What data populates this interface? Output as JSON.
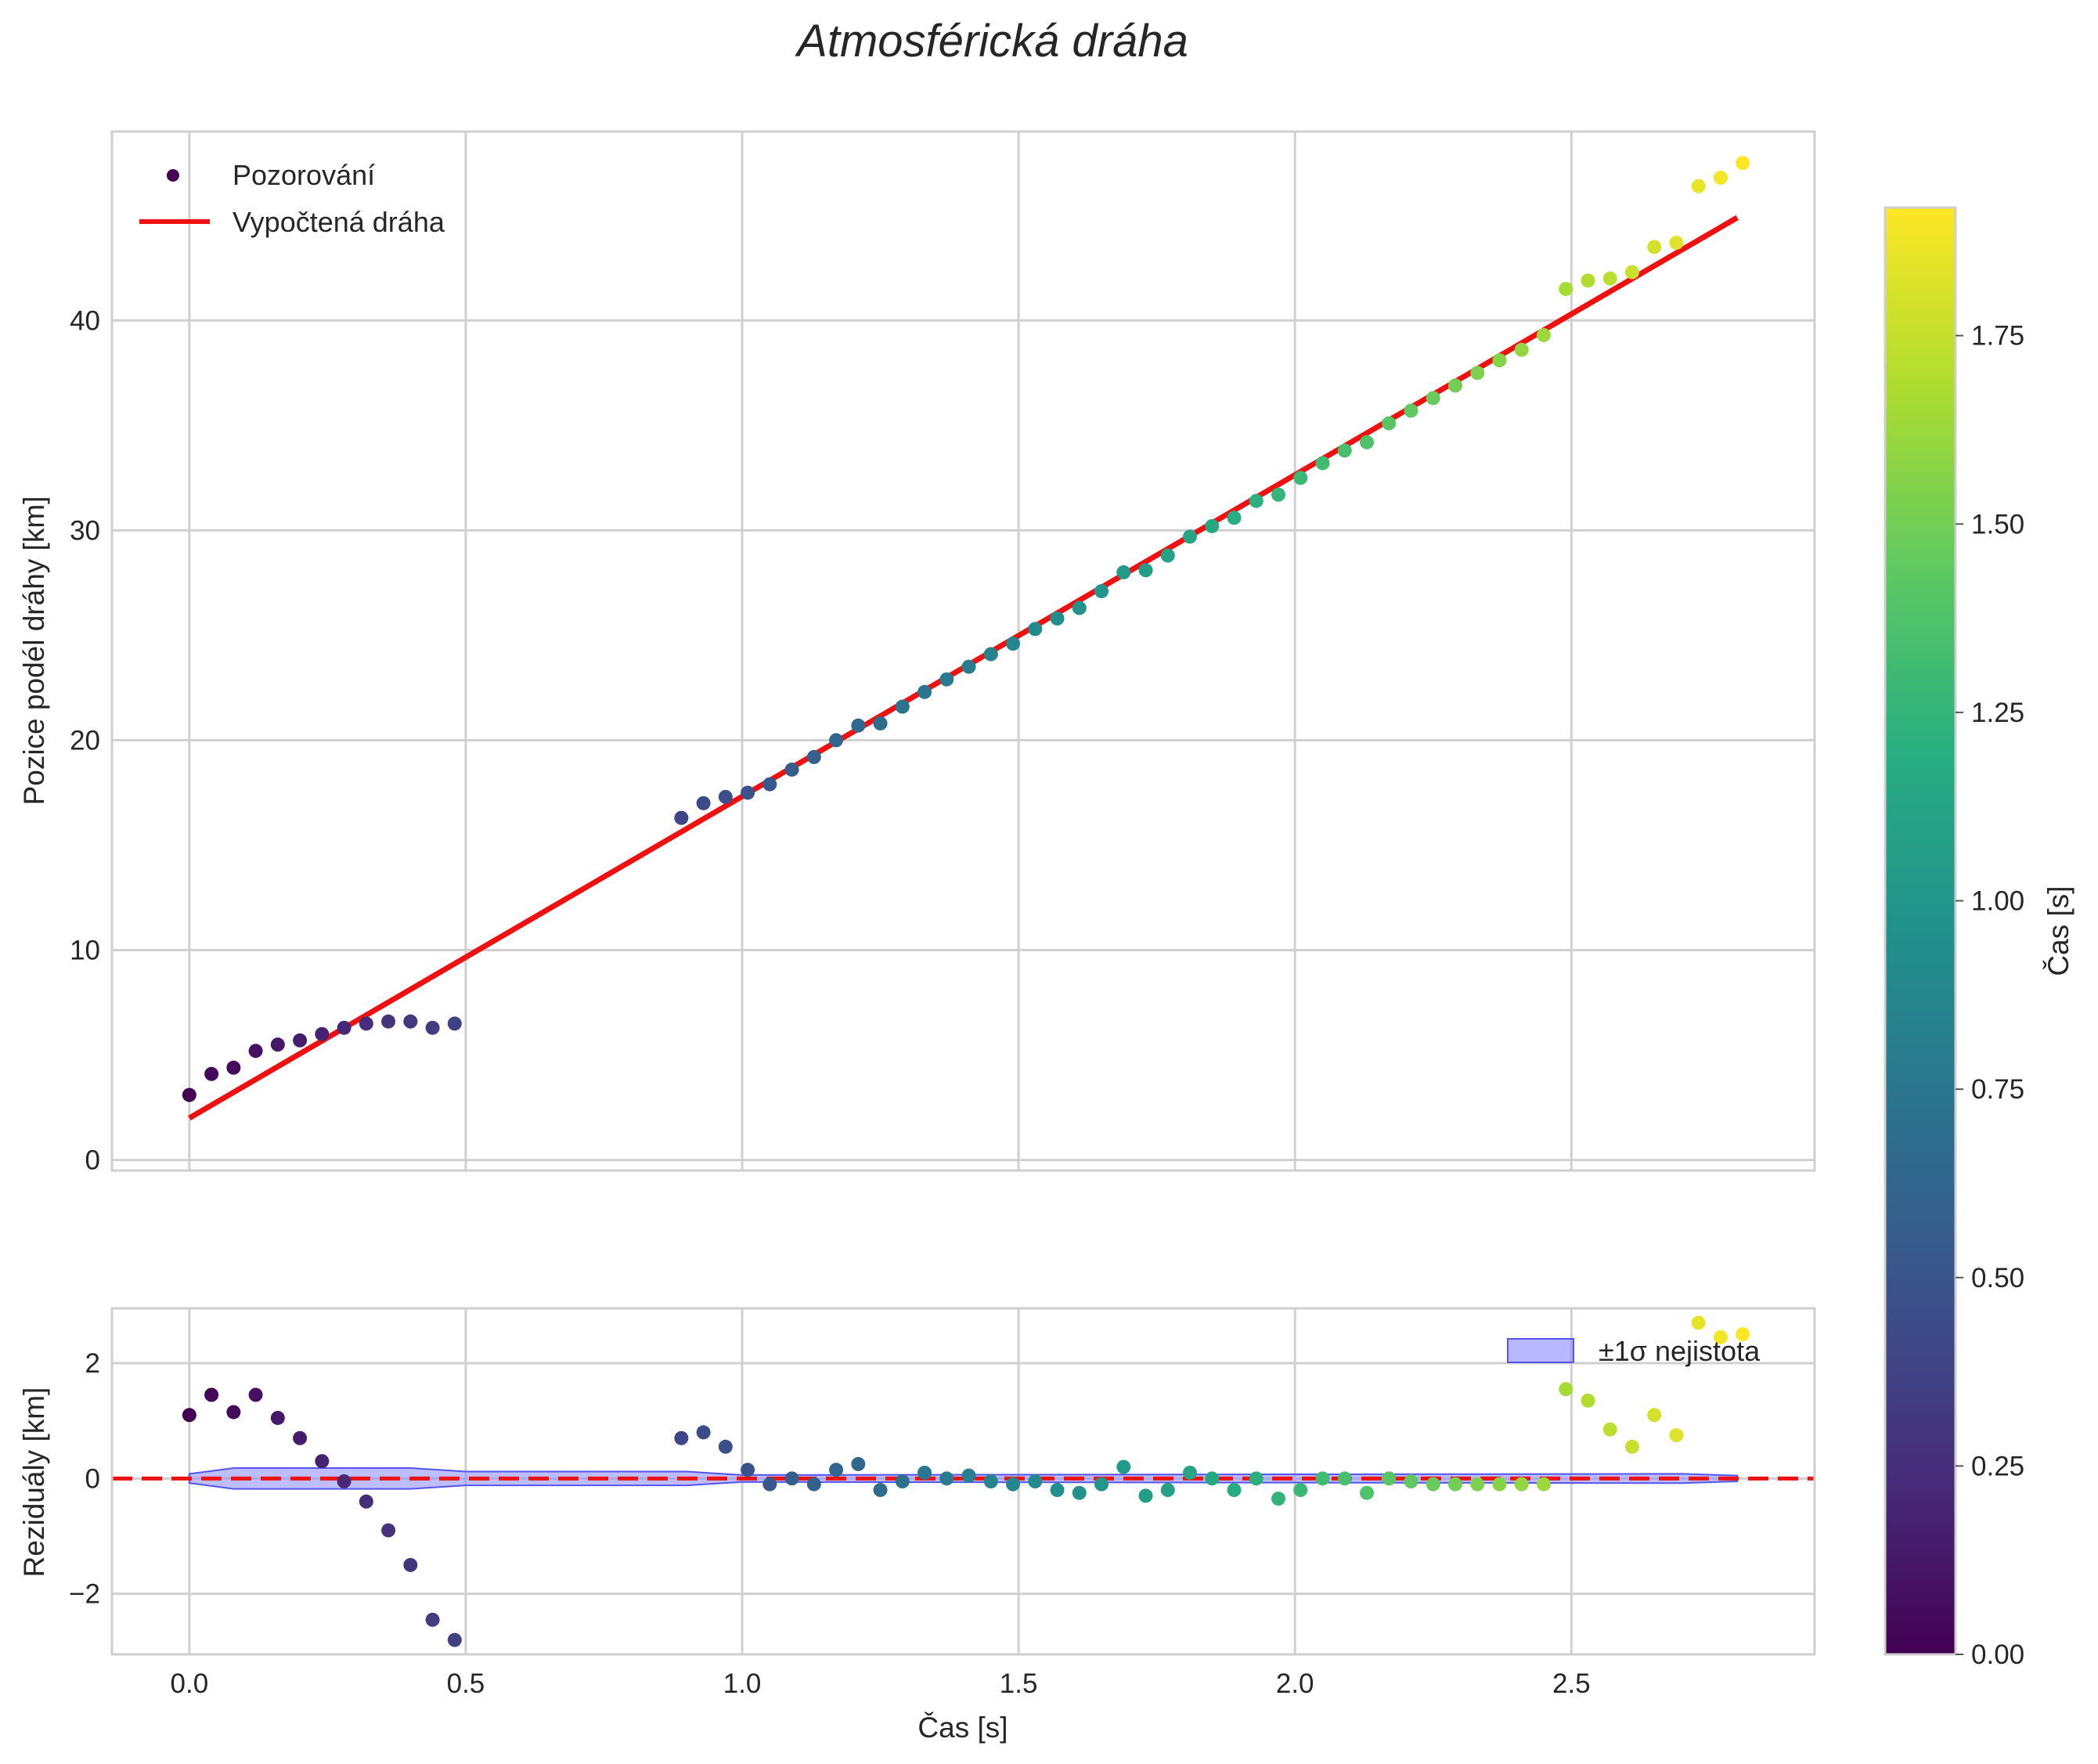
{
  "chart_data": {
    "title": "Atmosférická dráha",
    "colormap": "viridis",
    "colors": {
      "fit_line": "#ee1111",
      "zero_line": "#ee1111",
      "band_fill": "#8888ff",
      "band_edge": "#5555ee",
      "grid": "#d0d0d0"
    },
    "panels": [
      {
        "name": "main",
        "type": "scatter",
        "ylabel": "Pozice podél dráhy [km]",
        "ylim": [
          -0.5,
          49
        ],
        "yticks": [
          0,
          10,
          20,
          30,
          40
        ],
        "ytick_labels": [
          "0",
          "10",
          "20",
          "30",
          "40"
        ],
        "legend": {
          "position": "top-left",
          "entries": [
            {
              "label": "Pozorování",
              "kind": "marker"
            },
            {
              "label": "Vypočtená dráha",
              "kind": "line"
            }
          ]
        },
        "fit_line": {
          "x": [
            0.0,
            2.8
          ],
          "y": [
            2.0,
            44.9
          ]
        },
        "observations": {
          "x": [
            0.0,
            0.04,
            0.08,
            0.12,
            0.16,
            0.2,
            0.24,
            0.28,
            0.32,
            0.36,
            0.4,
            0.44,
            0.48,
            0.89,
            0.93,
            0.97,
            1.01,
            1.05,
            1.09,
            1.13,
            1.17,
            1.21,
            1.25,
            1.29,
            1.33,
            1.37,
            1.41,
            1.45,
            1.49,
            1.53,
            1.57,
            1.61,
            1.65,
            1.69,
            1.73,
            1.77,
            1.81,
            1.85,
            1.89,
            1.93,
            1.97,
            2.01,
            2.05,
            2.09,
            2.13,
            2.17,
            2.21,
            2.25,
            2.29,
            2.33,
            2.37,
            2.41,
            2.45,
            2.49,
            2.53,
            2.57,
            2.61,
            2.65,
            2.69,
            2.73,
            2.77,
            2.81
          ],
          "y": [
            3.1,
            4.1,
            4.4,
            5.2,
            5.5,
            5.7,
            6.0,
            6.3,
            6.5,
            6.6,
            6.6,
            6.3,
            6.5,
            16.3,
            17.0,
            17.3,
            17.5,
            17.9,
            18.6,
            19.2,
            20.0,
            20.7,
            20.8,
            21.6,
            22.3,
            22.9,
            23.5,
            24.1,
            24.6,
            25.3,
            25.8,
            26.3,
            27.1,
            28.0,
            28.1,
            28.8,
            29.7,
            30.2,
            30.6,
            31.4,
            31.7,
            32.5,
            33.2,
            33.8,
            34.2,
            35.1,
            35.7,
            36.3,
            36.9,
            37.5,
            38.1,
            38.6,
            39.3,
            41.5,
            41.9,
            42.0,
            42.3,
            43.5,
            43.7,
            46.4,
            46.8,
            47.5
          ]
        }
      },
      {
        "name": "residuals",
        "type": "scatter",
        "ylabel": "Reziduály [km]",
        "xlabel": "Čas [s]",
        "xlim": [
          -0.14,
          2.94
        ],
        "xticks": [
          0.0,
          0.5,
          1.0,
          1.5,
          2.0,
          2.5
        ],
        "xtick_labels": [
          "0.0",
          "0.5",
          "1.0",
          "1.5",
          "2.0",
          "2.5"
        ],
        "ylim": [
          -3.05,
          2.95
        ],
        "yticks": [
          -2,
          0,
          2
        ],
        "ytick_labels": [
          "−2",
          "0",
          "2"
        ],
        "legend": {
          "position": "top-right",
          "entries": [
            {
              "label": "±1σ nejistota",
              "kind": "band"
            }
          ]
        },
        "zero_line": 0,
        "uncertainty_band": {
          "x": [
            0.0,
            0.08,
            0.4,
            0.5,
            0.9,
            1.0,
            2.7,
            2.8
          ],
          "halfwidth": [
            0.08,
            0.18,
            0.18,
            0.12,
            0.12,
            0.06,
            0.08,
            0.05
          ]
        },
        "residuals": {
          "y": [
            1.1,
            1.45,
            1.15,
            1.45,
            1.05,
            0.7,
            0.3,
            -0.05,
            -0.4,
            -0.9,
            -1.5,
            -2.45,
            -2.8,
            0.7,
            0.8,
            0.55,
            0.15,
            -0.1,
            0.0,
            -0.1,
            0.15,
            0.25,
            -0.2,
            -0.05,
            0.1,
            0.0,
            0.05,
            -0.05,
            -0.1,
            -0.05,
            -0.2,
            -0.25,
            -0.1,
            0.2,
            -0.3,
            -0.2,
            0.1,
            0.0,
            -0.2,
            0.0,
            -0.35,
            -0.2,
            0.0,
            0.0,
            -0.25,
            0.0,
            -0.05,
            -0.1,
            -0.1,
            -0.1,
            -0.1,
            -0.1,
            -0.1,
            1.55,
            1.35,
            0.85,
            0.55,
            1.1,
            0.75,
            2.7,
            2.45,
            2.5
          ]
        }
      }
    ],
    "colorbar": {
      "label": "Čas [s]",
      "range": [
        0.0,
        1.92
      ],
      "ticks": [
        0.0,
        0.25,
        0.5,
        0.75,
        1.0,
        1.25,
        1.5,
        1.75
      ],
      "tick_labels": [
        "0.00",
        "0.25",
        "0.50",
        "0.75",
        "1.00",
        "1.25",
        "1.50",
        "1.75"
      ]
    }
  }
}
